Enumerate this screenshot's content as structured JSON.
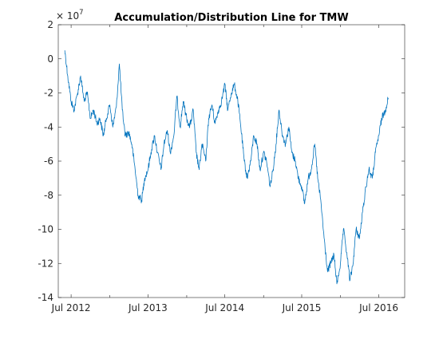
{
  "chart_data": {
    "type": "line",
    "title": "Accumulation/Distribution Line for TMW",
    "xlabel": "",
    "ylabel": "",
    "y_exponent": {
      "base": "× 10",
      "power": "7"
    },
    "ylim": [
      -14,
      2
    ],
    "y_ticks": [
      2,
      0,
      -2,
      -4,
      -6,
      -8,
      -10,
      -12,
      -14
    ],
    "y_tick_labels": [
      "2",
      "0",
      "-2",
      "-4",
      "-6",
      "-8",
      "-10",
      "-12",
      "-14"
    ],
    "xlim": [
      "2012-05-01",
      "2016-11-01"
    ],
    "x_ticks": [
      "2012-07-01",
      "2013-07-01",
      "2014-07-01",
      "2015-07-01",
      "2016-07-01"
    ],
    "x_tick_labels": [
      "Jul 2012",
      "Jul 2013",
      "Jul 2014",
      "Jul 2015",
      "Jul 2016"
    ],
    "grid": false,
    "box": true,
    "series": [
      {
        "color": "#0072BD",
        "x": [
          "2012-06-01",
          "2012-06-15",
          "2012-07-01",
          "2012-07-15",
          "2012-08-01",
          "2012-08-15",
          "2012-09-01",
          "2012-09-15",
          "2012-10-01",
          "2012-10-15",
          "2012-11-01",
          "2012-11-15",
          "2012-12-01",
          "2012-12-15",
          "2013-01-01",
          "2013-01-15",
          "2013-02-01",
          "2013-02-15",
          "2013-03-01",
          "2013-03-15",
          "2013-04-01",
          "2013-04-15",
          "2013-05-01",
          "2013-05-15",
          "2013-06-01",
          "2013-06-15",
          "2013-07-01",
          "2013-07-15",
          "2013-08-01",
          "2013-08-15",
          "2013-09-01",
          "2013-09-15",
          "2013-10-01",
          "2013-10-15",
          "2013-11-01",
          "2013-11-15",
          "2013-12-01",
          "2013-12-15",
          "2014-01-01",
          "2014-01-15",
          "2014-02-01",
          "2014-02-15",
          "2014-03-01",
          "2014-03-15",
          "2014-04-01",
          "2014-04-15",
          "2014-05-01",
          "2014-05-15",
          "2014-06-01",
          "2014-06-15",
          "2014-07-01",
          "2014-07-15",
          "2014-08-01",
          "2014-08-15",
          "2014-09-01",
          "2014-09-15",
          "2014-10-01",
          "2014-10-15",
          "2014-11-01",
          "2014-11-15",
          "2014-12-01",
          "2014-12-15",
          "2015-01-01",
          "2015-01-15",
          "2015-02-01",
          "2015-02-15",
          "2015-03-01",
          "2015-03-15",
          "2015-04-01",
          "2015-04-15",
          "2015-05-01",
          "2015-05-15",
          "2015-06-01",
          "2015-06-15",
          "2015-07-01",
          "2015-07-15",
          "2015-08-01",
          "2015-08-15",
          "2015-09-01",
          "2015-09-15",
          "2015-10-01",
          "2015-10-15",
          "2015-11-01",
          "2015-11-15",
          "2015-12-01",
          "2015-12-15",
          "2016-01-01",
          "2016-01-15",
          "2016-02-01",
          "2016-02-15",
          "2016-03-01",
          "2016-03-15",
          "2016-04-01",
          "2016-04-15",
          "2016-05-01",
          "2016-05-15",
          "2016-06-01",
          "2016-06-15",
          "2016-07-01",
          "2016-07-15",
          "2016-08-01",
          "2016-08-15"
        ],
        "values": [
          0.5,
          -1.0,
          -2.5,
          -3.0,
          -2.0,
          -1.0,
          -2.5,
          -2.0,
          -3.5,
          -3.0,
          -3.8,
          -3.5,
          -4.5,
          -3.5,
          -2.7,
          -4.0,
          -2.8,
          -0.3,
          -3.0,
          -4.5,
          -4.3,
          -5.0,
          -6.5,
          -8.0,
          -8.3,
          -7.0,
          -6.5,
          -5.5,
          -4.5,
          -5.5,
          -6.5,
          -5.0,
          -4.2,
          -5.5,
          -4.5,
          -2.2,
          -4.0,
          -2.5,
          -3.5,
          -4.0,
          -3.0,
          -5.5,
          -6.5,
          -5.0,
          -6.0,
          -3.5,
          -2.7,
          -3.8,
          -3.0,
          -2.5,
          -1.5,
          -3.0,
          -2.0,
          -1.5,
          -2.5,
          -4.0,
          -6.0,
          -7.0,
          -6.0,
          -4.5,
          -5.0,
          -6.5,
          -5.5,
          -6.0,
          -7.5,
          -6.5,
          -5.0,
          -3.0,
          -4.5,
          -5.0,
          -4.0,
          -5.5,
          -6.0,
          -7.0,
          -7.5,
          -8.5,
          -7.0,
          -6.5,
          -5.0,
          -7.0,
          -8.5,
          -10.5,
          -12.5,
          -12.0,
          -11.5,
          -13.2,
          -12.0,
          -10.0,
          -11.5,
          -13.0,
          -12.0,
          -10.0,
          -10.5,
          -9.0,
          -7.5,
          -6.5,
          -7.0,
          -5.5,
          -4.5,
          -3.5,
          -3.0,
          -2.3
        ]
      }
    ]
  }
}
